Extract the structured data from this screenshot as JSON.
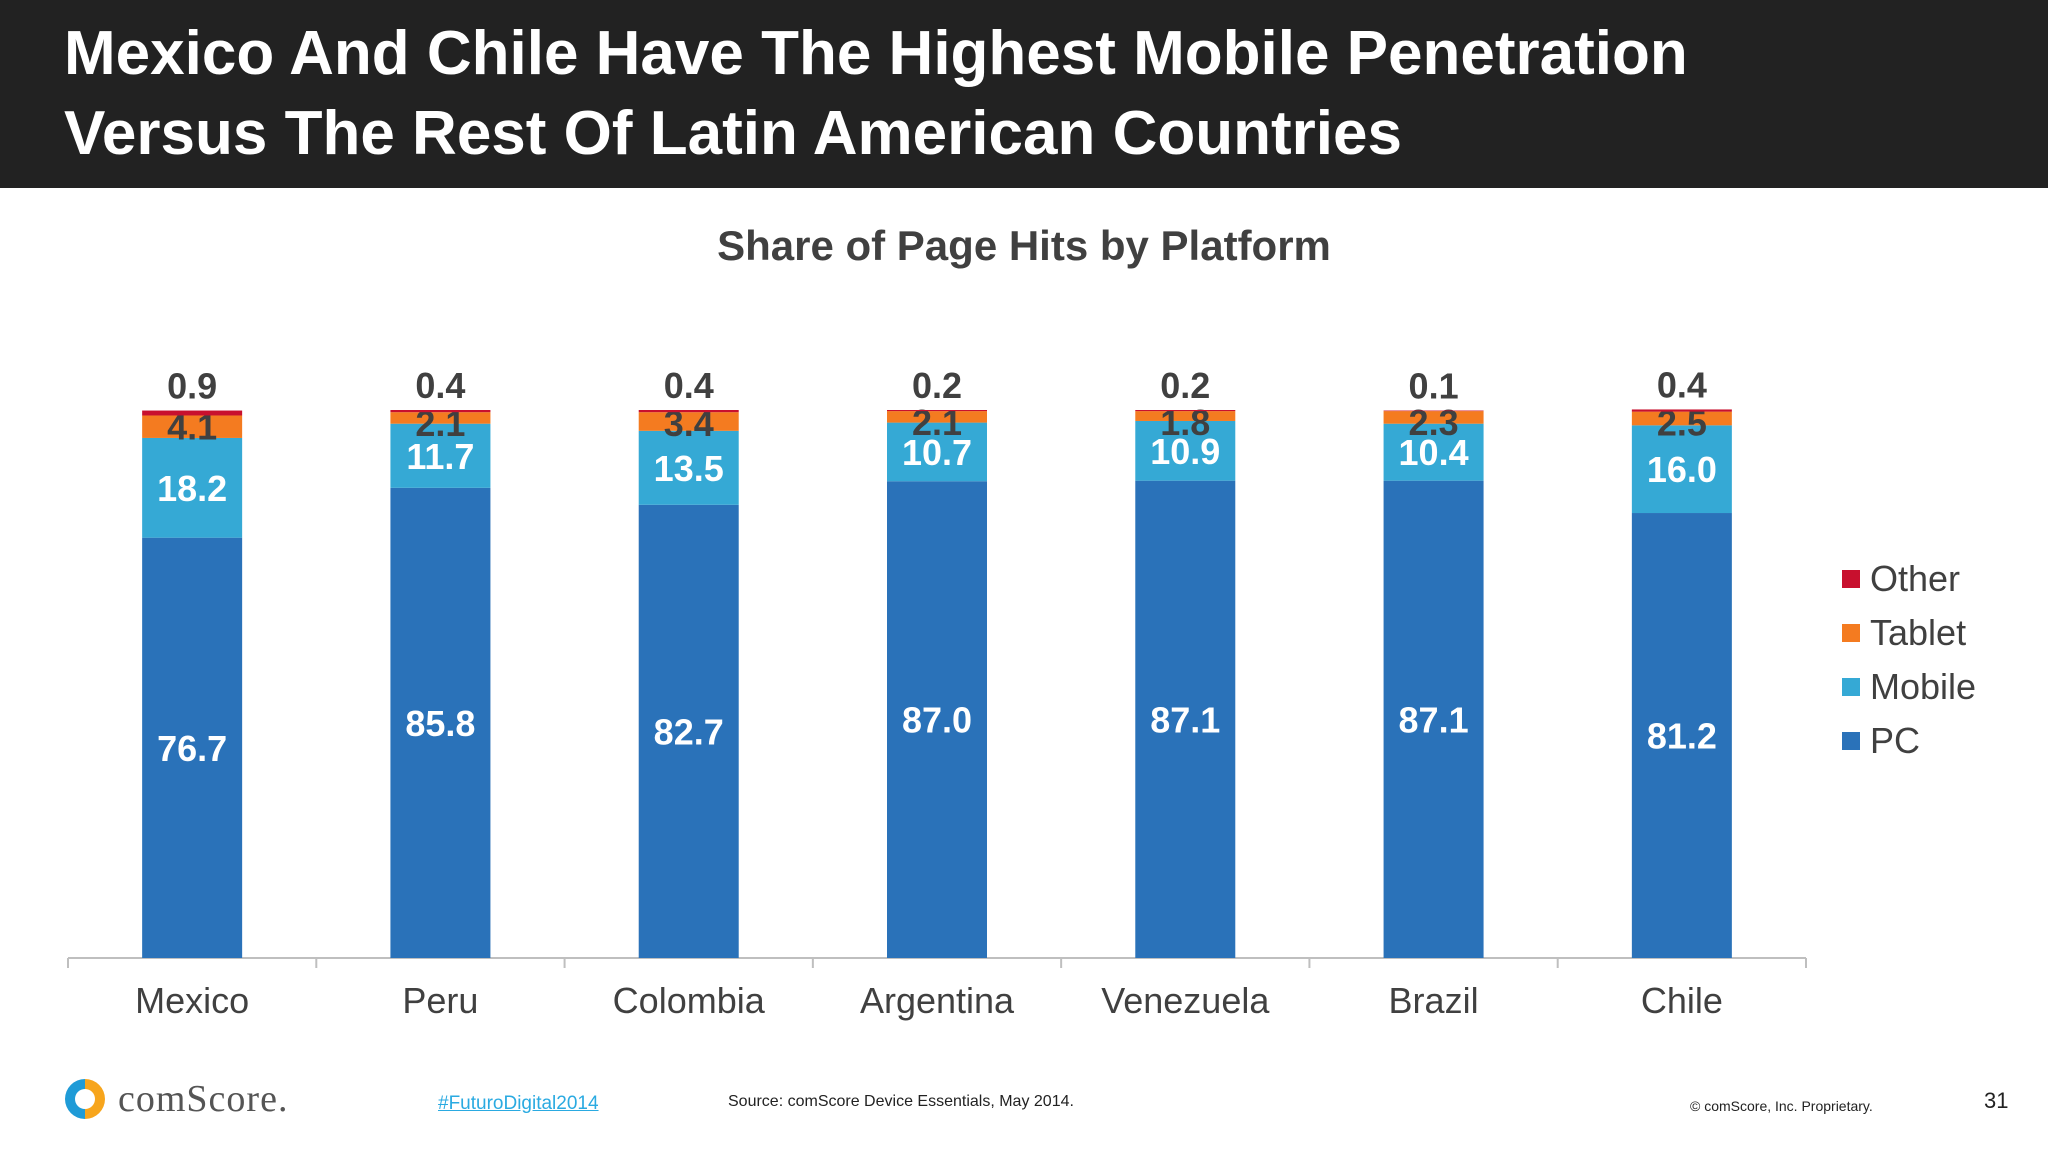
{
  "header": {
    "title_line1": "Mexico And Chile Have The Highest Mobile Penetration",
    "title_line2": "Versus The Rest Of Latin American Countries"
  },
  "chart_data": {
    "type": "bar",
    "stacked": true,
    "title": "Share of Page Hits by Platform",
    "categories": [
      "Mexico",
      "Peru",
      "Colombia",
      "Argentina",
      "Venezuela",
      "Brazil",
      "Chile"
    ],
    "series": [
      {
        "name": "PC",
        "color": "#2a72b9",
        "values": [
          76.7,
          85.8,
          82.7,
          87.0,
          87.1,
          87.1,
          81.2
        ]
      },
      {
        "name": "Mobile",
        "color": "#35a9d5",
        "values": [
          18.2,
          11.7,
          13.5,
          10.7,
          10.9,
          10.4,
          16.0
        ]
      },
      {
        "name": "Tablet",
        "color": "#f47b20",
        "values": [
          4.1,
          2.1,
          3.4,
          2.1,
          1.8,
          2.3,
          2.5
        ]
      },
      {
        "name": "Other",
        "color": "#c8102e",
        "values": [
          0.9,
          0.4,
          0.4,
          0.2,
          0.2,
          0.1,
          0.4
        ]
      }
    ],
    "ylim": [
      0,
      100
    ],
    "grid": false,
    "legend_position": "right"
  },
  "legend": [
    {
      "label": "Other",
      "color": "#c8102e"
    },
    {
      "label": "Tablet",
      "color": "#f47b20"
    },
    {
      "label": "Mobile",
      "color": "#35a9d5"
    },
    {
      "label": "PC",
      "color": "#2a72b9"
    }
  ],
  "footer": {
    "logo_text": "comScore.",
    "hashtag": "#FuturoDigital2014",
    "source": "Source: comScore Device Essentials, May 2014.",
    "copyright": "© comScore, Inc. Proprietary.",
    "page_number": "31"
  }
}
